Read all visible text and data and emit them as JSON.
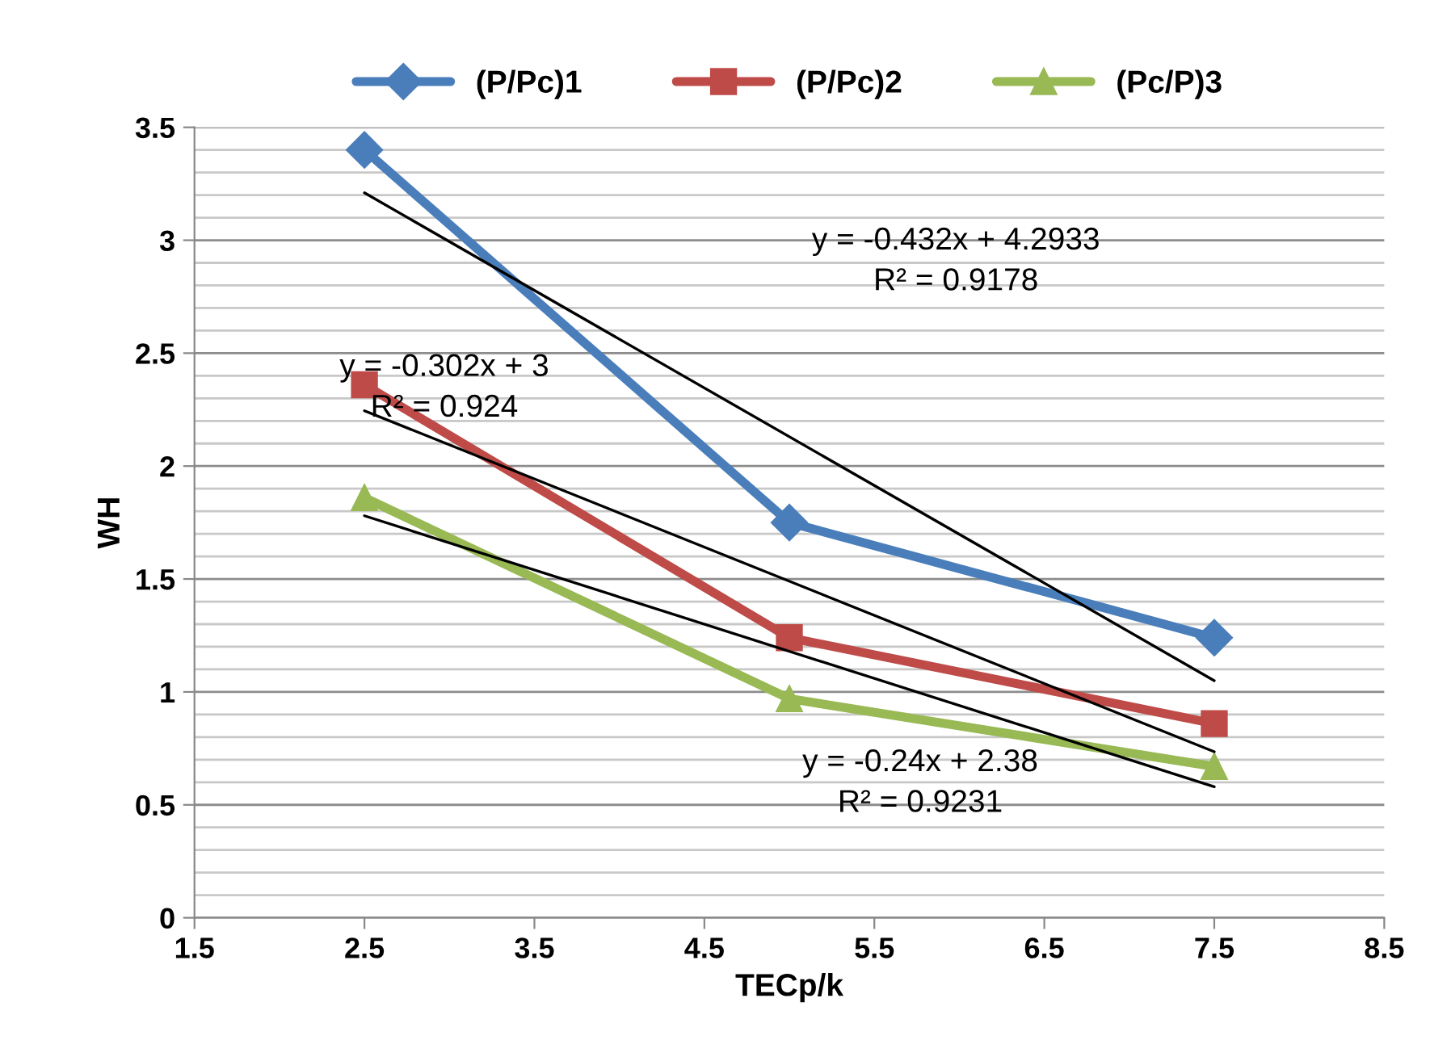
{
  "chart_data": {
    "type": "line",
    "xlabel": "TECp/k",
    "ylabel": "WH",
    "xlim": [
      1.5,
      8.5
    ],
    "xticks": [
      1.5,
      2.5,
      3.5,
      4.5,
      5.5,
      6.5,
      7.5,
      8.5
    ],
    "ylim": [
      0,
      3.5
    ],
    "yticks": [
      0,
      0.5,
      1,
      1.5,
      2,
      2.5,
      3,
      3.5
    ],
    "grid": "y",
    "legend": "top",
    "line_style": "solid",
    "series": [
      {
        "name": "(P/Pc)1",
        "color": "#4a7ebb",
        "marker": "diamond",
        "x": [
          2.5,
          5,
          7.5
        ],
        "values": [
          3.4,
          1.75,
          1.24
        ]
      },
      {
        "name": "(P/Pc)2",
        "color": "#be4b48",
        "marker": "square",
        "x": [
          2.5,
          5,
          7.5
        ],
        "values": [
          2.36,
          1.24,
          0.86
        ]
      },
      {
        "name": "(Pc/P)3",
        "color": "#98b954",
        "marker": "triangle",
        "x": [
          2.5,
          5,
          7.5
        ],
        "values": [
          1.86,
          0.97,
          0.67
        ]
      },
      {
        "color": "#000000",
        "marker": "none",
        "x": [
          2.5,
          7.5
        ],
        "values": [
          3.21,
          1.05
        ]
      },
      {
        "color": "#000000",
        "marker": "none",
        "x": [
          2.5,
          7.5
        ],
        "values": [
          2.245,
          0.735
        ]
      },
      {
        "color": "#000000",
        "marker": "none",
        "x": [
          2.5,
          7.5
        ],
        "values": [
          1.78,
          0.58
        ]
      }
    ],
    "annotations": [
      "y = -0.432x + 4.2933\nR² = 0.9178",
      "y = -0.302x + 3\nR² = 0.924",
      "y = -0.24x + 2.38\nR² = 0.9231"
    ]
  }
}
